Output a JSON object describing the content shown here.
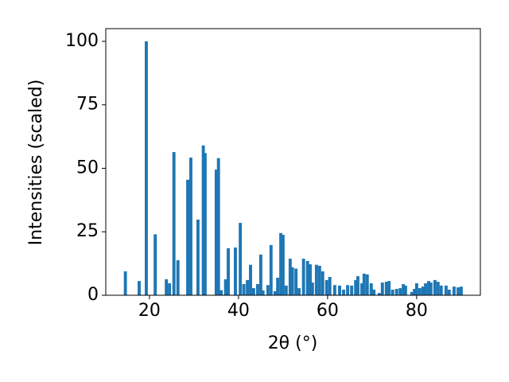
{
  "chart_data": {
    "type": "bar",
    "xlabel": "2θ (°)",
    "ylabel": "Intensities (scaled)",
    "color": "#1f77b4",
    "x": [
      14.6,
      17.7,
      19.3,
      21.3,
      23.8,
      24.5,
      25.5,
      26.4,
      28.6,
      29.3,
      30.9,
      32.1,
      32.5,
      35.0,
      35.5,
      36.1,
      37.1,
      37.7,
      39.3,
      40.4,
      41.2,
      42.0,
      42.7,
      43.4,
      44.3,
      45.0,
      45.5,
      46.6,
      47.3,
      48.2,
      48.8,
      49.5,
      50.0,
      50.7,
      51.6,
      52.1,
      52.9,
      53.6,
      54.6,
      55.5,
      56.1,
      56.6,
      57.5,
      58.2,
      58.9,
      59.8,
      60.5,
      61.6,
      62.7,
      63.6,
      64.5,
      65.4,
      66.3,
      66.8,
      67.7,
      68.2,
      68.9,
      69.8,
      70.4,
      71.6,
      72.3,
      73.2,
      73.8,
      74.6,
      75.5,
      76.3,
      77.0,
      77.5,
      78.9,
      79.5,
      80.0,
      80.7,
      81.4,
      82.0,
      82.7,
      83.2,
      84.1,
      84.8,
      85.5,
      86.6,
      87.3,
      88.4,
      89.3,
      90.0
    ],
    "values": [
      9.4,
      5.6,
      100,
      24,
      6.3,
      4.7,
      56.4,
      13.8,
      45.5,
      54.2,
      29.8,
      59,
      56,
      49.5,
      54,
      2,
      6.3,
      18.5,
      18.8,
      28.5,
      4.4,
      6,
      12,
      2.8,
      4.4,
      16,
      1.9,
      4,
      19.8,
      1.6,
      6.9,
      24.5,
      23.8,
      3.8,
      14.4,
      11,
      10.5,
      2.8,
      14.4,
      13.5,
      12.2,
      5,
      12,
      11.6,
      9.4,
      6,
      7.2,
      4,
      3.8,
      2.2,
      4,
      3.8,
      6,
      7.5,
      4.7,
      8.5,
      8.2,
      4.7,
      2.2,
      0.9,
      5,
      5.3,
      5.6,
      2.2,
      2.5,
      2.8,
      4.4,
      3.8,
      1.3,
      2.5,
      4.7,
      2.8,
      3.4,
      4.7,
      5.6,
      5,
      6,
      5.3,
      3.8,
      3.8,
      2.2,
      3.4,
      3.1,
      3.4
    ],
    "xlim": [
      10.2,
      94.3
    ],
    "xticks": [
      20,
      40,
      60,
      80
    ],
    "ylim": [
      0,
      105
    ],
    "yticks": [
      0,
      25,
      50,
      75,
      100
    ]
  }
}
